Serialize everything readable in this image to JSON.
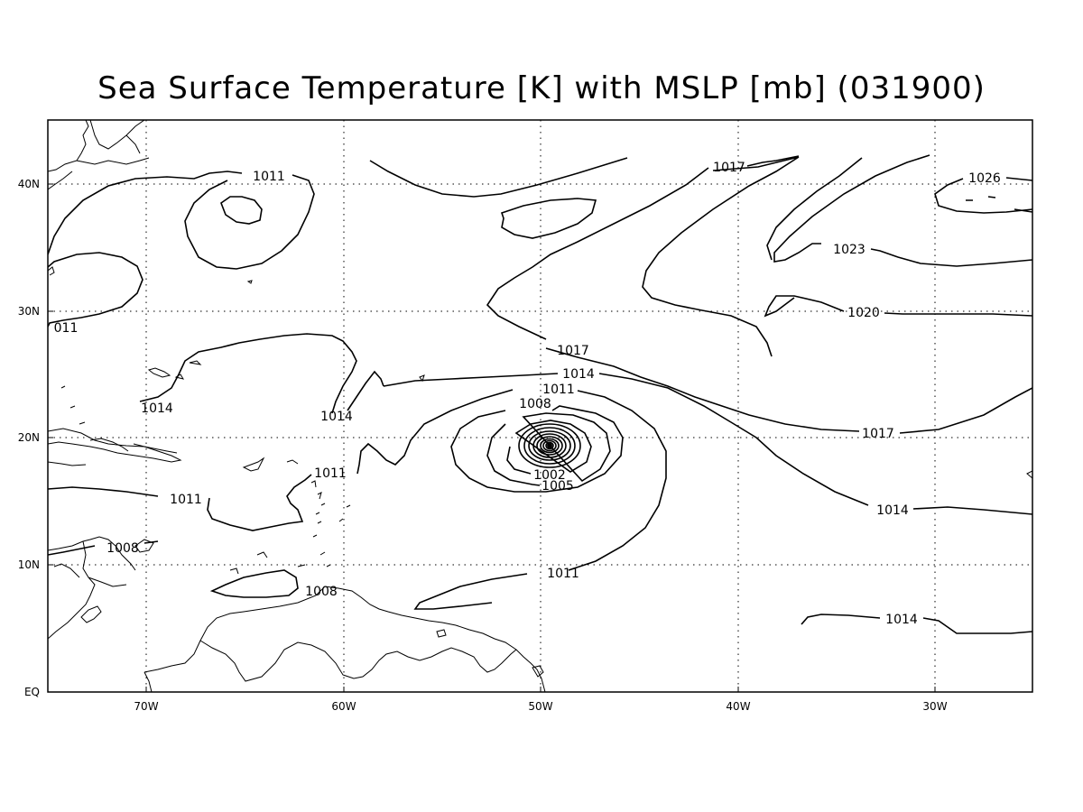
{
  "title": "Sea Surface Temperature [K] with MSLP [mb] (031900)",
  "x_ticks": [
    "70W",
    "60W",
    "50W",
    "40W",
    "30W"
  ],
  "y_ticks": [
    "EQ",
    "10N",
    "20N",
    "30N",
    "40N"
  ],
  "contour_labels": {
    "l1011_nw": "1011",
    "l1017_ne": "1017",
    "l1026": "1026",
    "l1023": "1023",
    "l1020": "1020",
    "l011_edge": "011",
    "l1017_c": "1017",
    "l1014_c": "1014",
    "l1011_c": "1011",
    "l1008_c": "1008",
    "l1014_w": "1014",
    "l1014_w2": "1014",
    "l1017_e": "1017",
    "l1011_carib": "1011",
    "l1002": "1002",
    "l1005": "1005",
    "l1011_w": "1011",
    "l1014_e": "1014",
    "l1008_w": "1008",
    "l1011_s": "1011",
    "l1008_s": "1008",
    "l1014_se": "1014"
  }
}
